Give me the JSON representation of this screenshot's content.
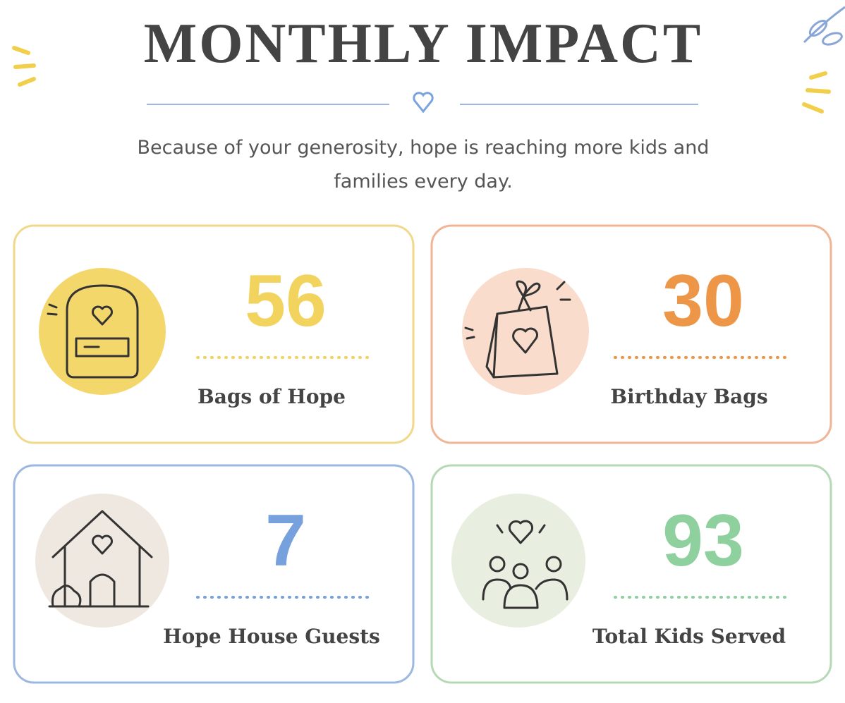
{
  "header": {
    "title": "MONTHLY IMPACT",
    "subtitle": [
      "Because of your generosity, hope is reaching more kids and",
      "families every day."
    ]
  },
  "cards": [
    {
      "value": "56",
      "label": "Bags of Hope",
      "color": "#f2d35e",
      "border": "#f0d98a"
    },
    {
      "value": "30",
      "label": "Birthday Bags",
      "color": "#ee9647",
      "border": "#f0b596"
    },
    {
      "value": "7",
      "label": "Hope House Guests",
      "color": "#77a1dc",
      "border": "#9db8e0"
    },
    {
      "value": "93",
      "label": "Total Kids Served",
      "color": "#8fd09f",
      "border": "#b5d9b5"
    }
  ]
}
